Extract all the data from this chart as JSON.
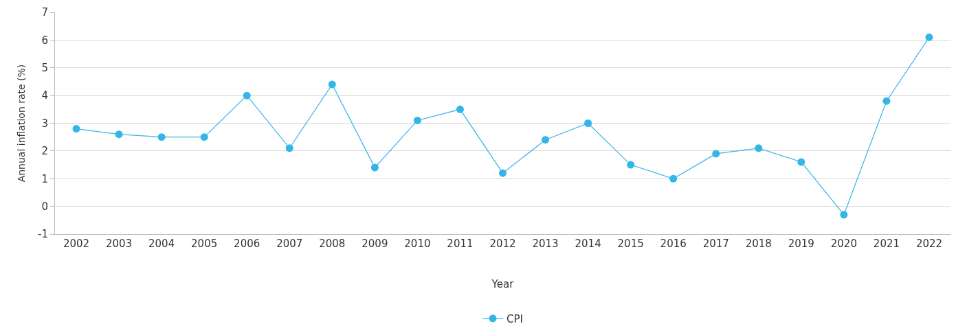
{
  "chart_data": {
    "type": "line",
    "xlabel": "Year",
    "ylabel": "Annual inflation rate (%)",
    "categories": [
      "2002",
      "2003",
      "2004",
      "2005",
      "2006",
      "2007",
      "2008",
      "2009",
      "2010",
      "2011",
      "2012",
      "2013",
      "2014",
      "2015",
      "2016",
      "2017",
      "2018",
      "2019",
      "2020",
      "2021",
      "2022"
    ],
    "series": [
      {
        "name": "CPI",
        "color": "#33b5e8",
        "values": [
          2.8,
          2.6,
          2.5,
          2.5,
          4.0,
          2.1,
          4.4,
          1.4,
          3.1,
          3.5,
          1.2,
          2.4,
          3.0,
          1.5,
          1.0,
          1.9,
          2.1,
          1.6,
          -0.3,
          3.8,
          6.1
        ]
      }
    ],
    "ylim": [
      -1,
      7
    ],
    "yticks": [
      -1,
      0,
      1,
      2,
      3,
      4,
      5,
      6,
      7
    ],
    "grid": "y",
    "legend": "bottom",
    "marker": "circle",
    "line_style": "solid"
  }
}
